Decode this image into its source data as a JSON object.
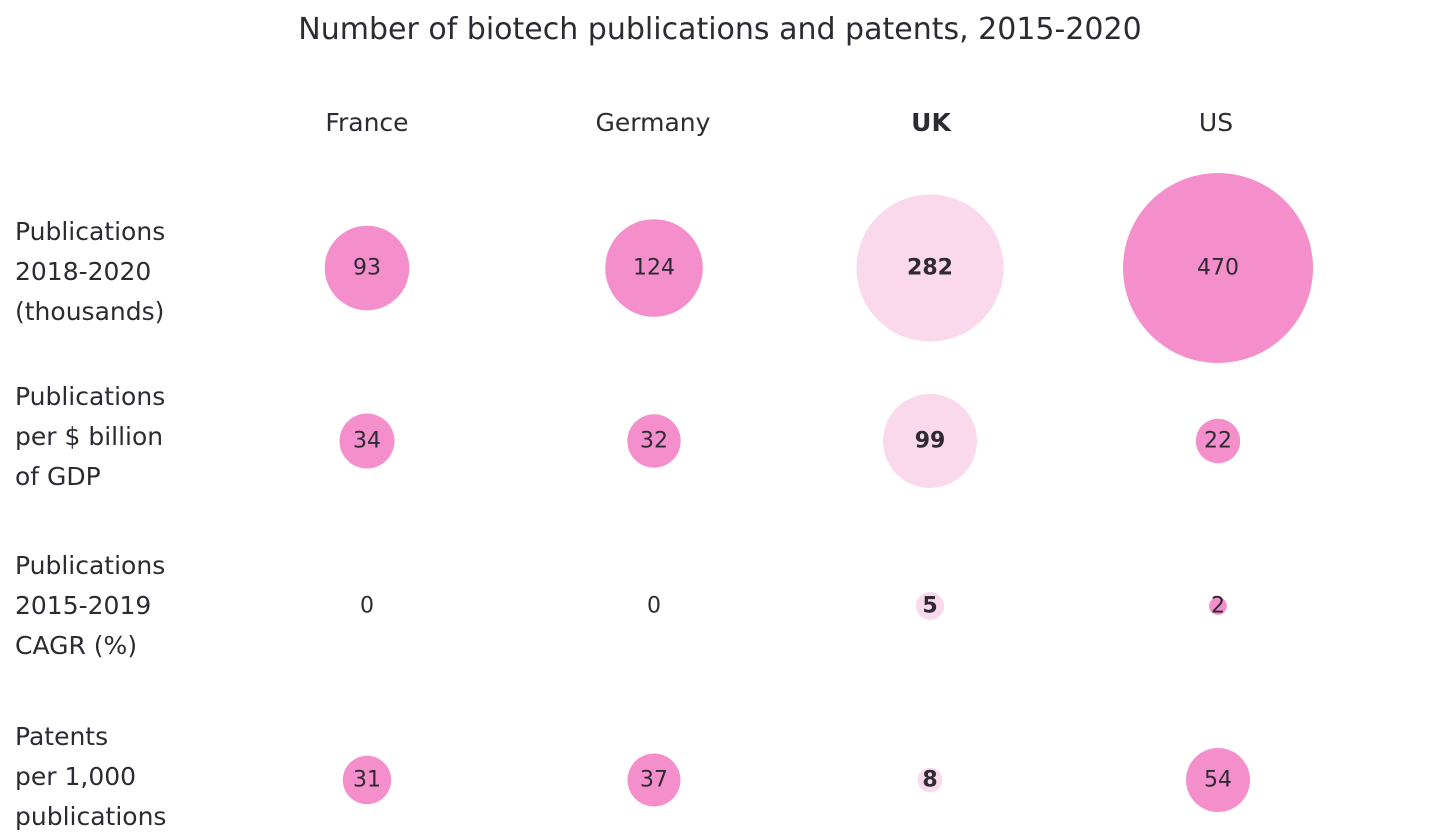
{
  "chart_data": {
    "type": "bubble-matrix",
    "title": "Number of biotech publications and patents, 2015-2020",
    "highlight_column": "UK",
    "columns": [
      "France",
      "Germany",
      "UK",
      "US"
    ],
    "rows": [
      {
        "label_lines": [
          "Publications",
          "2018-2020",
          "(thousands)"
        ],
        "values": [
          93,
          124,
          282,
          470
        ]
      },
      {
        "label_lines": [
          "Publications",
          "per $ billion",
          "of GDP"
        ],
        "values": [
          34,
          32,
          99,
          22
        ]
      },
      {
        "label_lines": [
          "Publications",
          "2015-2019",
          "CAGR (%)"
        ],
        "values": [
          0,
          0,
          5,
          2
        ]
      },
      {
        "label_lines": [
          "Patents",
          "per 1,000",
          "publications"
        ],
        "values": [
          31,
          37,
          8,
          54
        ]
      }
    ],
    "colors": {
      "bubble": "#f48fcb",
      "highlight_bubble": "#fad9ec",
      "text": "#2d2a33"
    }
  }
}
